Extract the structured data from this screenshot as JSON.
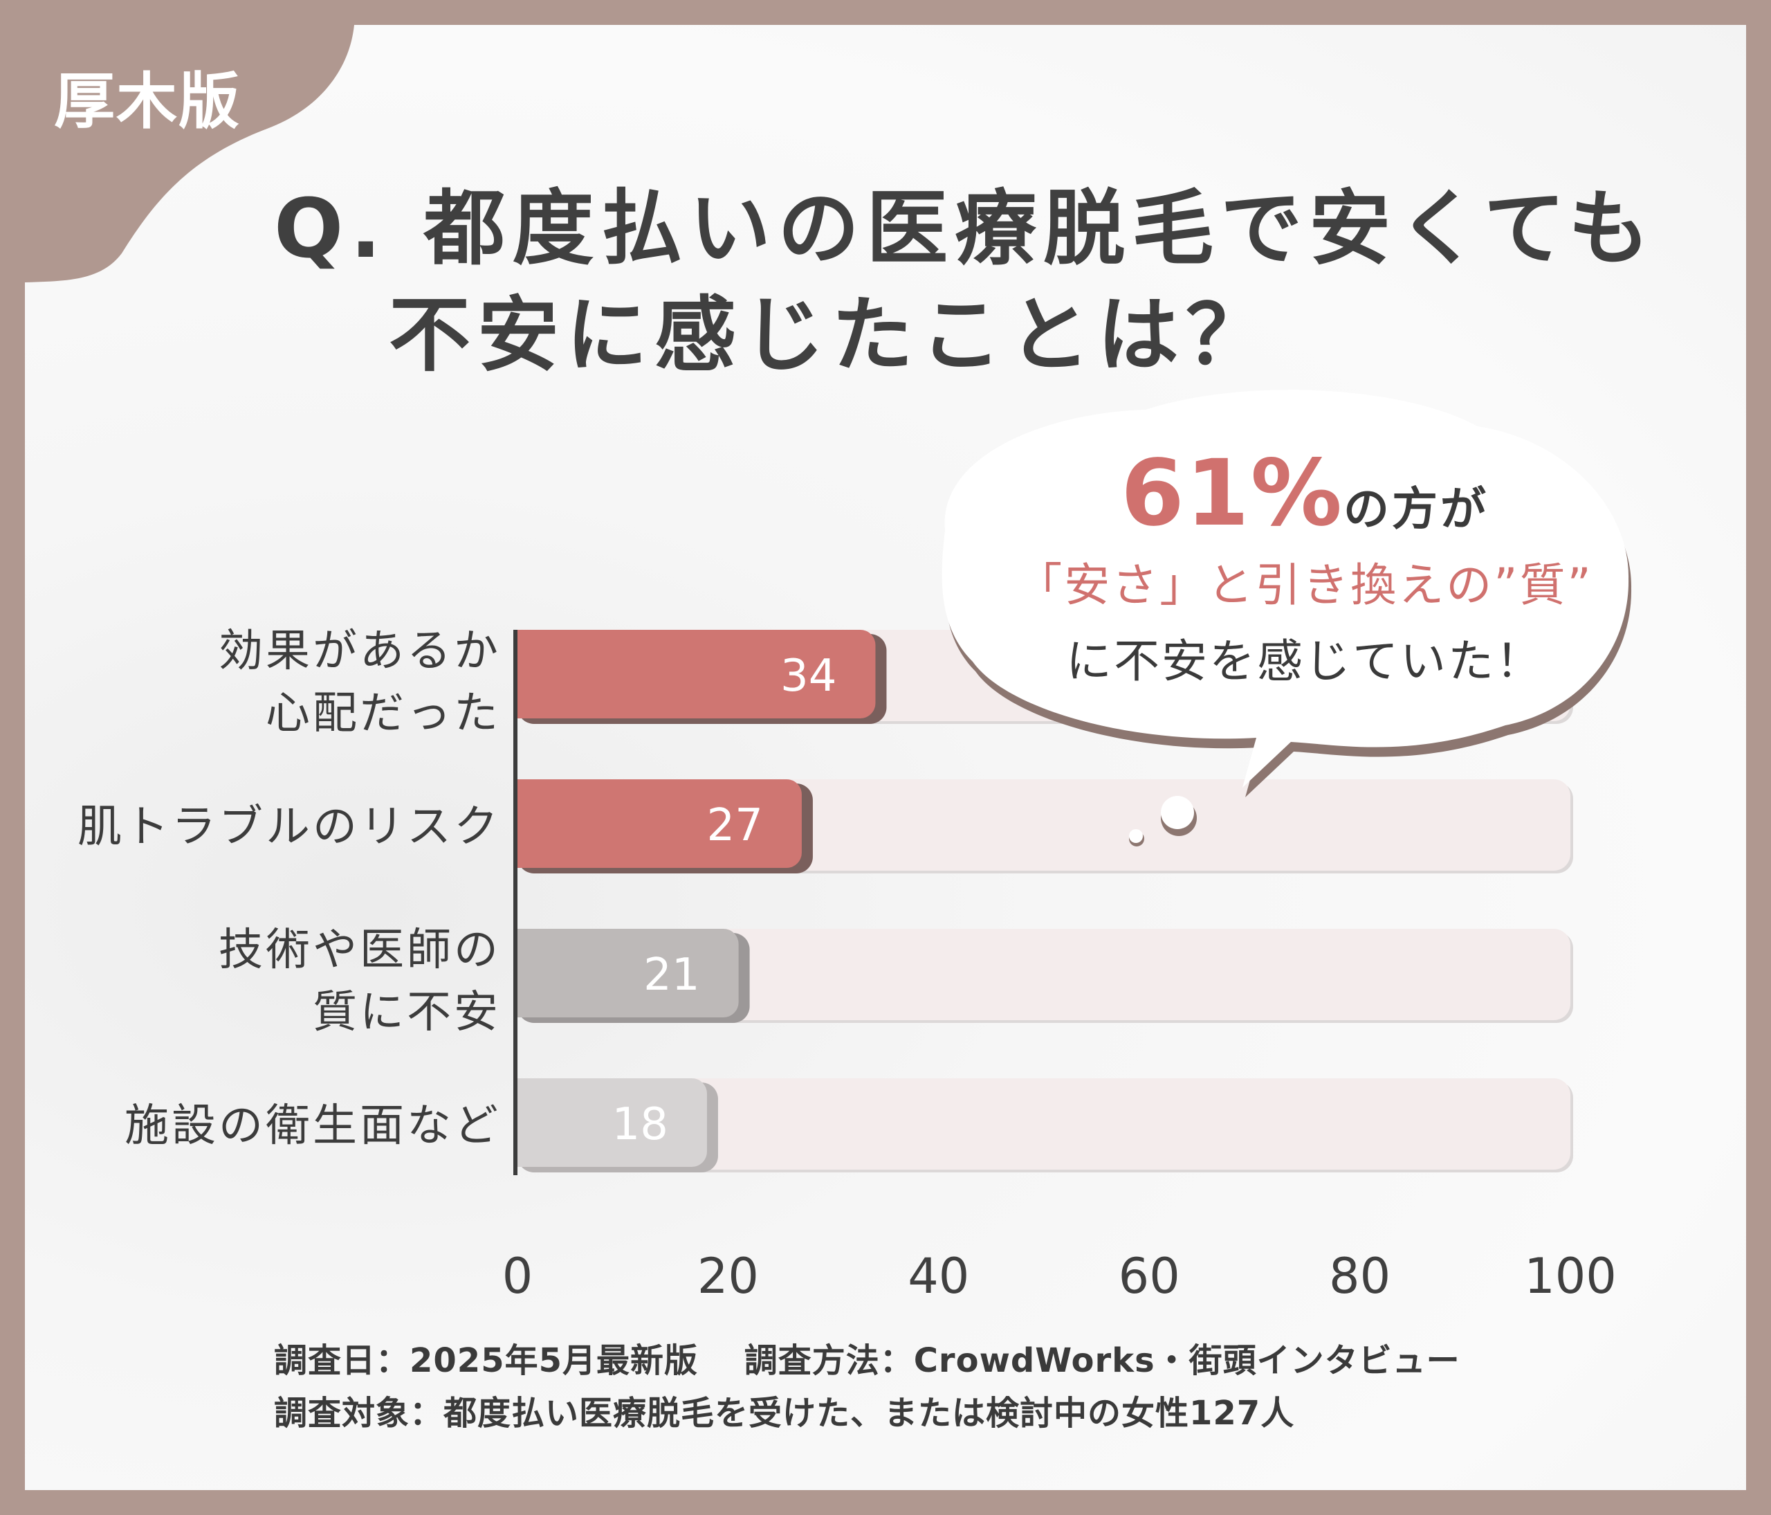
{
  "region_label": "厚木版",
  "title": {
    "line1": "Q. 都度払いの医療脱毛で安くても",
    "line2": "不安に感じたことは？"
  },
  "callout": {
    "line1_pct": "61%",
    "line1_rest": "の方が",
    "line2": "「安さ」と引き換えの”質”",
    "line3": "に不安を感じていた！"
  },
  "chart_data": {
    "type": "bar",
    "orientation": "horizontal",
    "categories": [
      [
        "効果があるか",
        "心配だった"
      ],
      [
        "肌トラブルのリスク"
      ],
      [
        "技術や医師の",
        "質に不安"
      ],
      [
        "施設の衛生面など"
      ]
    ],
    "values": [
      34,
      27,
      21,
      18
    ],
    "value_labels": [
      "34",
      "27",
      "21",
      "18"
    ],
    "xlim": [
      0,
      100
    ],
    "x_ticks": [
      "0",
      "20",
      "40",
      "60",
      "80",
      "100"
    ],
    "bar_colors": [
      "#cf7672",
      "#cf7672",
      "#bdb9b8",
      "#d6d3d3"
    ],
    "track_color": "#f4ecec",
    "grid": false
  },
  "footnotes": {
    "line1": "調査日：2025年5月最新版　 調査方法：CrowdWorks・街頭インタビュー",
    "line2": "調査対象：都度払い医療脱毛を受けた、または検討中の女性127人"
  }
}
